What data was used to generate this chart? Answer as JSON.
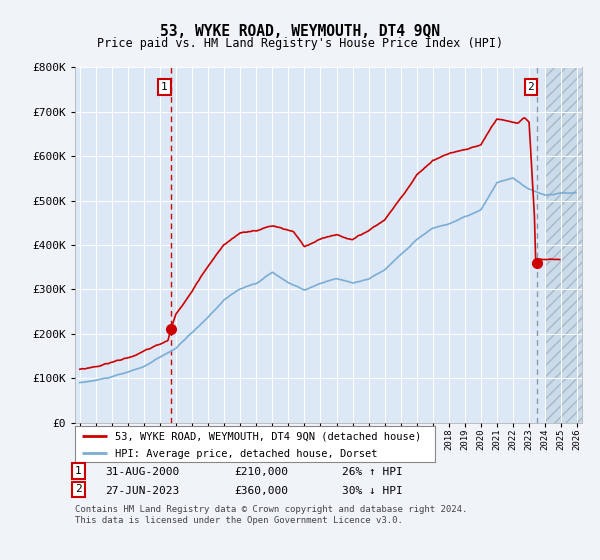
{
  "title": "53, WYKE ROAD, WEYMOUTH, DT4 9QN",
  "subtitle": "Price paid vs. HM Land Registry's House Price Index (HPI)",
  "legend_line1": "53, WYKE ROAD, WEYMOUTH, DT4 9QN (detached house)",
  "legend_line2": "HPI: Average price, detached house, Dorset",
  "footer": "Contains HM Land Registry data © Crown copyright and database right 2024.\nThis data is licensed under the Open Government Licence v3.0.",
  "transaction1": {
    "label": "1",
    "date": "31-AUG-2000",
    "price": "£210,000",
    "hpi": "26% ↑ HPI",
    "year": 2000.67
  },
  "transaction2": {
    "label": "2",
    "date": "27-JUN-2023",
    "price": "£360,000",
    "hpi": "30% ↓ HPI",
    "year": 2023.5
  },
  "ylim": [
    0,
    800000
  ],
  "xlim": [
    1994.7,
    2026.3
  ],
  "fig_bg": "#f0f4f8",
  "plot_bg": "#dce8f5",
  "red_color": "#cc0000",
  "blue_color": "#7badd4",
  "grid_color": "#ffffff",
  "yticks": [
    0,
    100000,
    200000,
    300000,
    400000,
    500000,
    600000,
    700000,
    800000
  ],
  "ytick_labels": [
    "£0",
    "£100K",
    "£200K",
    "£300K",
    "£400K",
    "£500K",
    "£600K",
    "£700K",
    "£800K"
  ]
}
